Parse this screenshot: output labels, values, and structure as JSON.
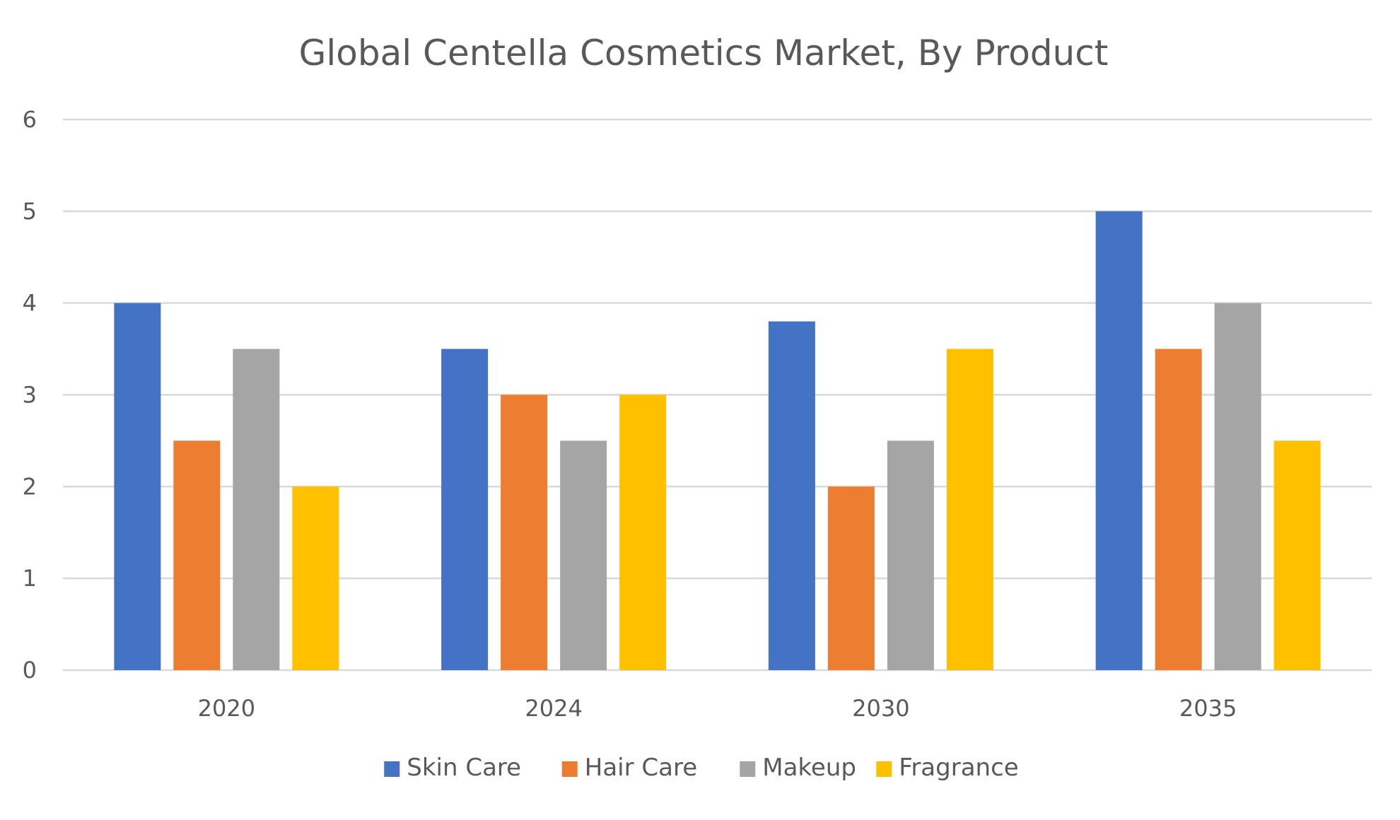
{
  "chart_data": {
    "type": "bar",
    "title": "Global Centella Cosmetics Market, By Product",
    "xlabel": "",
    "ylabel": "",
    "categories": [
      "2020",
      "2024",
      "2030",
      "2035"
    ],
    "ylim": [
      0,
      6
    ],
    "yticks": [
      0,
      1,
      2,
      3,
      4,
      5,
      6
    ],
    "grid": true,
    "legend_position": "bottom",
    "series": [
      {
        "name": "Skin Care",
        "color": "#4472C4",
        "values": [
          4,
          3.5,
          3.8,
          5
        ]
      },
      {
        "name": "Hair Care",
        "color": "#ED7D31",
        "values": [
          2.5,
          3,
          2,
          3.5
        ]
      },
      {
        "name": "Makeup",
        "color": "#A5A5A5",
        "values": [
          3.5,
          2.5,
          2.5,
          4
        ]
      },
      {
        "name": "Fragrance",
        "color": "#FFC000",
        "values": [
          2,
          3,
          3.5,
          2.5
        ]
      }
    ]
  }
}
